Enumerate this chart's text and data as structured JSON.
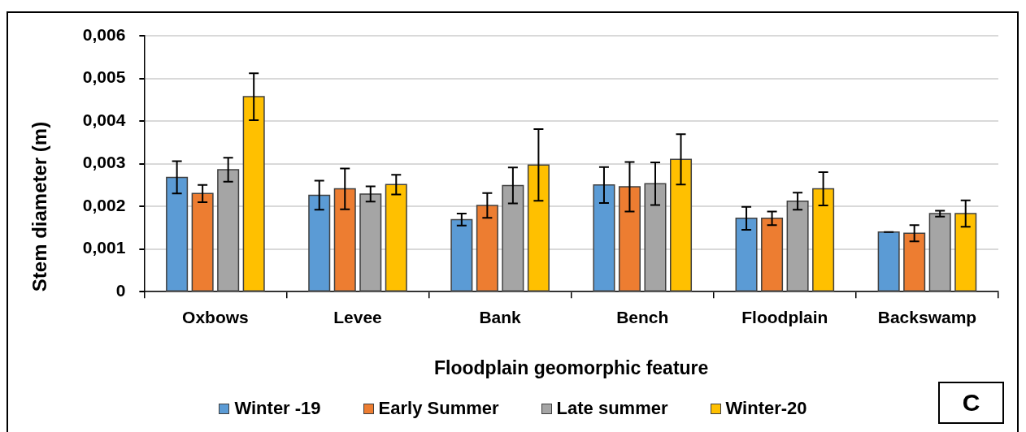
{
  "chart_data": {
    "type": "bar",
    "xlabel": "Floodplain geomorphic feature",
    "ylabel": "Stem diameter (m)",
    "categories": [
      "Oxbows",
      "Levee",
      "Bank",
      "Bench",
      "Floodplain",
      "Backswamp"
    ],
    "series": [
      {
        "name": "Winter -19",
        "color": "#5b9bd5",
        "values": [
          0.00268,
          0.00226,
          0.00169,
          0.0025,
          0.00172,
          0.0014
        ],
        "errors": [
          0.00038,
          0.00034,
          0.00014,
          0.00042,
          0.00027,
          0
        ]
      },
      {
        "name": "Early Summer",
        "color": "#ed7d31",
        "values": [
          0.0023,
          0.00241,
          0.00202,
          0.00246,
          0.00172,
          0.00137
        ],
        "errors": [
          0.0002,
          0.00048,
          0.00029,
          0.00058,
          0.00016,
          0.00019
        ]
      },
      {
        "name": "Late summer",
        "color": "#a5a5a5",
        "values": [
          0.00286,
          0.00229,
          0.00249,
          0.00253,
          0.00212,
          0.00183
        ],
        "errors": [
          0.00028,
          0.00018,
          0.00042,
          0.0005,
          0.0002,
          7e-05
        ]
      },
      {
        "name": "Winter-20",
        "color": "#ffc000",
        "values": [
          0.00457,
          0.00251,
          0.00297,
          0.0031,
          0.00241,
          0.00183
        ],
        "errors": [
          0.00055,
          0.00023,
          0.00084,
          0.00059,
          0.00039,
          0.00031
        ]
      }
    ],
    "ylim": [
      0,
      0.006
    ],
    "yticks": [
      0,
      {
        "value": 0.001,
        "label": "0,001"
      },
      {
        "value": 0.002,
        "label": "0,002"
      },
      {
        "value": 0.003,
        "label": "0,003"
      },
      {
        "value": 0.004,
        "label": "0,004"
      },
      {
        "value": 0.005,
        "label": "0,005"
      },
      {
        "value": 0.006,
        "label": "0,006"
      }
    ],
    "grid": "y",
    "legend": "bottom",
    "annotations": [
      "C"
    ]
  }
}
